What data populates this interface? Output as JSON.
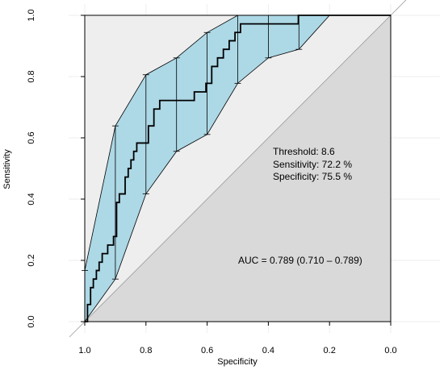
{
  "chart_data": {
    "type": "line",
    "subtype": "roc-curve",
    "title": "",
    "xlabel": "Specificity",
    "ylabel": "Sensitivity",
    "x_reversed": true,
    "xlim": [
      1.0,
      0.0
    ],
    "ylim": [
      0.0,
      1.0
    ],
    "xticks": [
      1.0,
      0.8,
      0.6,
      0.4,
      0.2,
      0.0
    ],
    "xtick_labels": [
      "1.0",
      "0.8",
      "0.6",
      "0.4",
      "0.2",
      "0.0"
    ],
    "yticks": [
      0.0,
      0.2,
      0.4,
      0.6,
      0.8,
      1.0
    ],
    "ytick_labels": [
      "0.0",
      "0.2",
      "0.4",
      "0.6",
      "0.8",
      "1.0"
    ],
    "grid": true,
    "colors": {
      "ci_band": "#add8e6",
      "upper_region": "#eeeeee",
      "lower_region": "#d9d9d9",
      "curve": "#000000",
      "diagonal": "#999999",
      "grid": "#eeeeee"
    },
    "roc_curve": {
      "specificity": [
        1.0,
        0.991,
        0.991,
        0.981,
        0.981,
        0.972,
        0.972,
        0.962,
        0.962,
        0.953,
        0.953,
        0.943,
        0.943,
        0.925,
        0.925,
        0.906,
        0.906,
        0.896,
        0.896,
        0.887,
        0.887,
        0.868,
        0.868,
        0.858,
        0.858,
        0.849,
        0.849,
        0.84,
        0.84,
        0.83,
        0.83,
        0.792,
        0.792,
        0.774,
        0.774,
        0.755,
        0.755,
        0.642,
        0.642,
        0.604,
        0.604,
        0.585,
        0.585,
        0.566,
        0.566,
        0.547,
        0.547,
        0.528,
        0.528,
        0.509,
        0.509,
        0.491,
        0.491,
        0.377,
        0.377,
        0.302,
        0.302,
        0.0
      ],
      "sensitivity": [
        0.0,
        0.0,
        0.056,
        0.056,
        0.111,
        0.111,
        0.139,
        0.139,
        0.167,
        0.167,
        0.194,
        0.194,
        0.222,
        0.222,
        0.25,
        0.25,
        0.278,
        0.278,
        0.389,
        0.389,
        0.417,
        0.417,
        0.472,
        0.472,
        0.5,
        0.5,
        0.528,
        0.528,
        0.556,
        0.556,
        0.583,
        0.583,
        0.639,
        0.639,
        0.694,
        0.694,
        0.722,
        0.722,
        0.75,
        0.75,
        0.778,
        0.778,
        0.833,
        0.833,
        0.861,
        0.861,
        0.889,
        0.889,
        0.917,
        0.917,
        0.944,
        0.944,
        0.972,
        0.972,
        0.972,
        0.972,
        1.0,
        1.0
      ]
    },
    "ci_band": {
      "specificity": [
        1.0,
        0.9,
        0.8,
        0.7,
        0.6,
        0.5,
        0.4,
        0.3,
        0.2,
        0.1,
        0.0
      ],
      "sensitivity_lower": [
        0.0,
        0.139,
        0.417,
        0.556,
        0.611,
        0.778,
        0.861,
        0.889,
        1.0,
        1.0,
        1.0
      ],
      "sensitivity_upper": [
        0.167,
        0.639,
        0.806,
        0.861,
        0.944,
        1.0,
        1.0,
        1.0,
        1.0,
        1.0,
        1.0
      ]
    },
    "annotations": {
      "threshold": "Threshold: 8.6",
      "sensitivity": "Sensitivity: 72.2 %",
      "specificity": "Specificity: 75.5 %",
      "auc": "AUC = 0.789 (0.710 – 0.789)"
    }
  }
}
